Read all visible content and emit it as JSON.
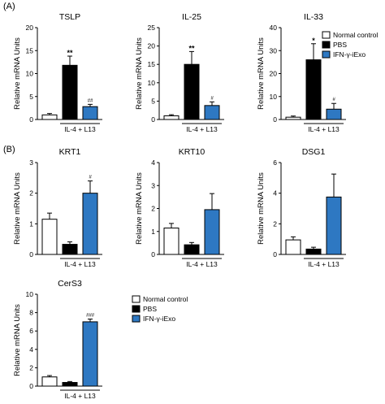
{
  "panels": [
    {
      "label": "(A)"
    },
    {
      "label": "(B)"
    }
  ],
  "legend": {
    "entries": [
      {
        "label": "Normal control",
        "color": "#ffffff"
      },
      {
        "label": "PBS",
        "color": "#000000"
      },
      {
        "label": "IFN-γ-iExo",
        "color": "#2e78c2"
      }
    ]
  },
  "chart_data": [
    {
      "type": "bar",
      "title": "TSLP",
      "ylabel": "Relative mRNA Units",
      "ylim": [
        0,
        20
      ],
      "yticks": [
        0,
        5,
        10,
        15,
        20
      ],
      "categories": [
        "Normal control",
        "PBS",
        "IFN-γ-iExo"
      ],
      "values": [
        1,
        11.8,
        2.8
      ],
      "errors": [
        0.3,
        2.0,
        0.5
      ],
      "annotations": [
        "",
        "**",
        "##"
      ],
      "group_label": "IL-4 + L13"
    },
    {
      "type": "bar",
      "title": "IL-25",
      "ylabel": "Relative mRNA Units",
      "ylim": [
        0,
        25
      ],
      "yticks": [
        0,
        5,
        10,
        15,
        20,
        25
      ],
      "categories": [
        "Normal control",
        "PBS",
        "IFN-γ-iExo"
      ],
      "values": [
        1,
        15,
        3.8
      ],
      "errors": [
        0.3,
        3.5,
        1.0
      ],
      "annotations": [
        "",
        "**",
        "#"
      ],
      "group_label": "IL-4 + L13"
    },
    {
      "type": "bar",
      "title": "IL-33",
      "ylabel": "Relative mRNA Units",
      "ylim": [
        0,
        40
      ],
      "yticks": [
        0,
        10,
        20,
        30,
        40
      ],
      "categories": [
        "Normal control",
        "PBS",
        "IFN-γ-iExo"
      ],
      "values": [
        1,
        26,
        4.5
      ],
      "errors": [
        0.5,
        7.0,
        2.5
      ],
      "annotations": [
        "",
        "*",
        "#"
      ],
      "group_label": "IL-4 + L13"
    },
    {
      "type": "bar",
      "title": "KRT1",
      "ylabel": "Relative mRNA Units",
      "ylim": [
        0,
        3
      ],
      "yticks": [
        0,
        1,
        2,
        3
      ],
      "categories": [
        "Normal control",
        "PBS",
        "IFN-γ-iExo"
      ],
      "values": [
        1.15,
        0.33,
        2.0
      ],
      "errors": [
        0.2,
        0.08,
        0.4
      ],
      "annotations": [
        "",
        "",
        "#"
      ],
      "group_label": "IL-4 + L13"
    },
    {
      "type": "bar",
      "title": "KRT10",
      "ylabel": "Relative mRNA Units",
      "ylim": [
        0,
        4
      ],
      "yticks": [
        0,
        1,
        2,
        3,
        4
      ],
      "categories": [
        "Normal control",
        "PBS",
        "IFN-γ-iExo"
      ],
      "values": [
        1.15,
        0.42,
        1.95
      ],
      "errors": [
        0.2,
        0.1,
        0.7
      ],
      "annotations": [
        "",
        "",
        ""
      ],
      "group_label": "IL-4 + L13"
    },
    {
      "type": "bar",
      "title": "DSG1",
      "ylabel": "Relative mRNA Units",
      "ylim": [
        0,
        6
      ],
      "yticks": [
        0,
        2,
        4,
        6
      ],
      "categories": [
        "Normal control",
        "PBS",
        "IFN-γ-iExo"
      ],
      "values": [
        0.95,
        0.35,
        3.75
      ],
      "errors": [
        0.2,
        0.12,
        1.5
      ],
      "annotations": [
        "",
        "",
        ""
      ],
      "group_label": "IL-4 + L13"
    },
    {
      "type": "bar",
      "title": "CerS3",
      "ylabel": "Relative mRNA Units",
      "ylim": [
        0,
        10
      ],
      "yticks": [
        0,
        2,
        4,
        6,
        8,
        10
      ],
      "categories": [
        "Normal control",
        "PBS",
        "IFN-γ-iExo"
      ],
      "values": [
        1.0,
        0.4,
        7.0
      ],
      "errors": [
        0.15,
        0.1,
        0.3
      ],
      "annotations": [
        "",
        "",
        "###"
      ],
      "group_label": "IL-4 + L13"
    }
  ]
}
